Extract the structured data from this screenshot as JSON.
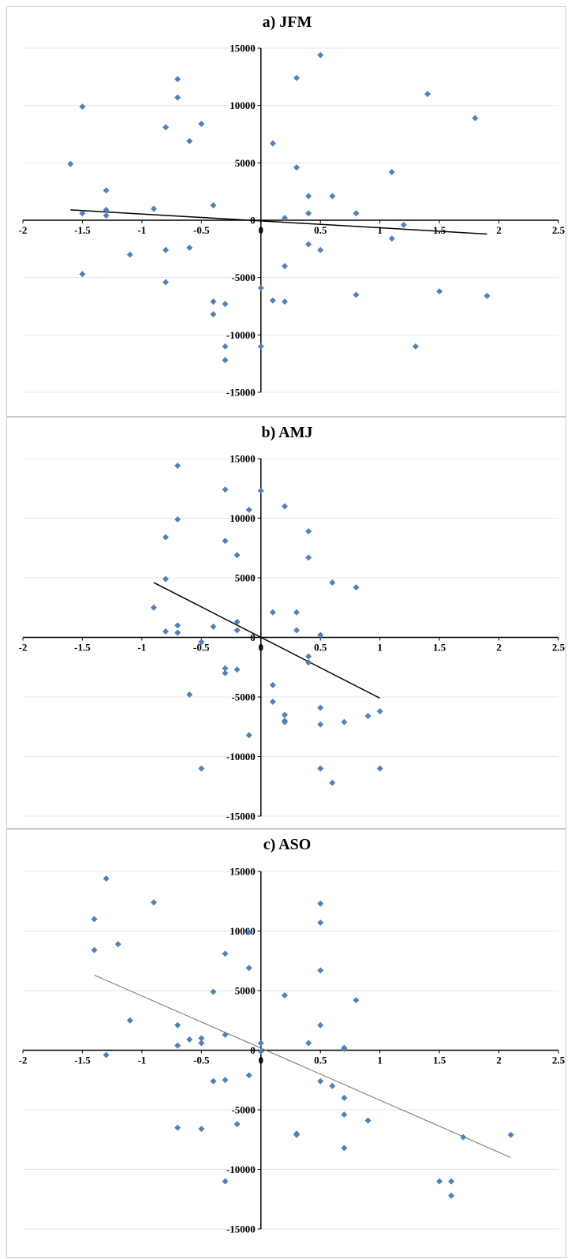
{
  "colors": {
    "point": "#4f81bd",
    "axis": "#000000",
    "grid": "#e6e6e6",
    "trend": "#000000",
    "trend_c": "#707070"
  },
  "chart_data": [
    {
      "type": "scatter",
      "title": "a) JFM",
      "xlim": [
        -2,
        2.5
      ],
      "ylim": [
        -15000,
        15000
      ],
      "xticks": [
        "-2",
        "-1.5",
        "-1",
        "-0.5",
        "0",
        "0.5",
        "1",
        "1.5",
        "2",
        "2.5"
      ],
      "yticks": [
        "15000",
        "10000",
        "5000",
        "0",
        "-5000",
        "-10000",
        "-15000"
      ],
      "grid": "horizontal",
      "points": [
        [
          -1.6,
          4900
        ],
        [
          -1.5,
          9900
        ],
        [
          -1.5,
          600
        ],
        [
          -1.5,
          -4700
        ],
        [
          -1.3,
          2600
        ],
        [
          -1.3,
          900
        ],
        [
          -1.3,
          400
        ],
        [
          -1.1,
          -3000
        ],
        [
          -0.9,
          1000
        ],
        [
          -0.8,
          8100
        ],
        [
          -0.8,
          -2600
        ],
        [
          -0.8,
          -5400
        ],
        [
          -0.7,
          12300
        ],
        [
          -0.7,
          10700
        ],
        [
          -0.6,
          6900
        ],
        [
          -0.6,
          -2400
        ],
        [
          -0.5,
          8400
        ],
        [
          -0.4,
          1300
        ],
        [
          -0.4,
          -7100
        ],
        [
          -0.4,
          -8200
        ],
        [
          -0.3,
          -7300
        ],
        [
          -0.3,
          -11000
        ],
        [
          -0.3,
          -12200
        ],
        [
          0,
          -5900
        ],
        [
          0,
          -11000
        ],
        [
          0.1,
          6700
        ],
        [
          0.1,
          -7000
        ],
        [
          0.2,
          200
        ],
        [
          0.2,
          -4000
        ],
        [
          0.2,
          -7100
        ],
        [
          0.3,
          12400
        ],
        [
          0.3,
          4600
        ],
        [
          0.4,
          2100
        ],
        [
          0.4,
          600
        ],
        [
          0.4,
          -2100
        ],
        [
          0.5,
          14400
        ],
        [
          0.5,
          -2600
        ],
        [
          0.6,
          2100
        ],
        [
          0.8,
          600
        ],
        [
          0.8,
          -6500
        ],
        [
          1.1,
          4200
        ],
        [
          1.1,
          -1600
        ],
        [
          1.2,
          -400
        ],
        [
          1.3,
          -11000
        ],
        [
          1.4,
          11000
        ],
        [
          1.5,
          -6200
        ],
        [
          1.8,
          8900
        ],
        [
          1.9,
          -6600
        ]
      ],
      "trendline": [
        [
          -1.6,
          900
        ],
        [
          1.9,
          -1200
        ]
      ]
    },
    {
      "type": "scatter",
      "title": "b) AMJ",
      "xlim": [
        -2,
        2.5
      ],
      "ylim": [
        -15000,
        15000
      ],
      "xticks": [
        "-2",
        "-1.5",
        "-1",
        "-0.5",
        "0",
        "0.5",
        "1",
        "1.5",
        "2",
        "2.5"
      ],
      "yticks": [
        "15000",
        "10000",
        "5000",
        "0",
        "-5000",
        "-10000",
        "-15000"
      ],
      "grid": "horizontal",
      "points": [
        [
          -0.9,
          2500
        ],
        [
          -0.8,
          8400
        ],
        [
          -0.8,
          4900
        ],
        [
          -0.8,
          500
        ],
        [
          -0.7,
          14400
        ],
        [
          -0.7,
          9900
        ],
        [
          -0.7,
          1000
        ],
        [
          -0.7,
          400
        ],
        [
          -0.6,
          -4800
        ],
        [
          -0.5,
          -400
        ],
        [
          -0.5,
          -11000
        ],
        [
          -0.4,
          900
        ],
        [
          -0.3,
          12400
        ],
        [
          -0.3,
          8100
        ],
        [
          -0.3,
          -2600
        ],
        [
          -0.3,
          -3000
        ],
        [
          -0.2,
          6900
        ],
        [
          -0.2,
          1300
        ],
        [
          -0.2,
          600
        ],
        [
          -0.2,
          -2700
        ],
        [
          -0.1,
          10700
        ],
        [
          -0.1,
          -8200
        ],
        [
          0,
          12300
        ],
        [
          0.1,
          2100
        ],
        [
          0.1,
          -4000
        ],
        [
          0.1,
          -5400
        ],
        [
          0.2,
          11000
        ],
        [
          0.2,
          -6500
        ],
        [
          0.2,
          -7000
        ],
        [
          0.2,
          -7100
        ],
        [
          0.3,
          2100
        ],
        [
          0.3,
          600
        ],
        [
          0.4,
          8900
        ],
        [
          0.4,
          6700
        ],
        [
          0.4,
          -1600
        ],
        [
          0.4,
          -2100
        ],
        [
          0.5,
          200
        ],
        [
          0.5,
          -5900
        ],
        [
          0.5,
          -7300
        ],
        [
          0.5,
          -11000
        ],
        [
          0.6,
          4600
        ],
        [
          0.6,
          -12200
        ],
        [
          0.7,
          -7100
        ],
        [
          0.8,
          4200
        ],
        [
          0.9,
          -6600
        ],
        [
          1,
          -6200
        ],
        [
          1,
          -11000
        ]
      ],
      "trendline": [
        [
          -0.9,
          4600
        ],
        [
          1,
          -5100
        ]
      ]
    },
    {
      "type": "scatter",
      "title": "c) ASO",
      "xlim": [
        -2,
        2.5
      ],
      "ylim": [
        -15000,
        15000
      ],
      "xticks": [
        "-2",
        "-1.5",
        "-1",
        "-0.5",
        "0",
        "0.5",
        "1",
        "1.5",
        "2",
        "2.5"
      ],
      "yticks": [
        "15000",
        "10000",
        "5000",
        "0",
        "-5000",
        "-10000",
        "-15000"
      ],
      "grid": "horizontal",
      "points": [
        [
          -1.4,
          11000
        ],
        [
          -1.4,
          8400
        ],
        [
          -1.3,
          14400
        ],
        [
          -1.3,
          -400
        ],
        [
          -1.2,
          8900
        ],
        [
          -1.1,
          2500
        ],
        [
          -0.9,
          12400
        ],
        [
          -0.7,
          2100
        ],
        [
          -0.7,
          400
        ],
        [
          -0.7,
          -6500
        ],
        [
          -0.6,
          900
        ],
        [
          -0.5,
          1000
        ],
        [
          -0.5,
          600
        ],
        [
          -0.5,
          -6600
        ],
        [
          -0.4,
          4900
        ],
        [
          -0.4,
          -2600
        ],
        [
          -0.3,
          8100
        ],
        [
          -0.3,
          1300
        ],
        [
          -0.3,
          -2500
        ],
        [
          -0.3,
          -11000
        ],
        [
          -0.2,
          -6200
        ],
        [
          -0.1,
          9900
        ],
        [
          -0.1,
          6900
        ],
        [
          -0.1,
          -2100
        ],
        [
          0,
          600
        ],
        [
          0,
          -100
        ],
        [
          0.2,
          4600
        ],
        [
          0.3,
          -7000
        ],
        [
          0.3,
          -7100
        ],
        [
          0.4,
          600
        ],
        [
          0.5,
          12300
        ],
        [
          0.5,
          10700
        ],
        [
          0.5,
          6700
        ],
        [
          0.5,
          2100
        ],
        [
          0.5,
          -2600
        ],
        [
          0.6,
          -3000
        ],
        [
          0.7,
          200
        ],
        [
          0.7,
          100
        ],
        [
          0.7,
          -4000
        ],
        [
          0.7,
          -5400
        ],
        [
          0.7,
          -8200
        ],
        [
          0.8,
          4200
        ],
        [
          0.9,
          -5900
        ],
        [
          1.5,
          -11000
        ],
        [
          1.6,
          -11000
        ],
        [
          1.6,
          -12200
        ],
        [
          1.7,
          -7300
        ],
        [
          2.1,
          -7100
        ]
      ],
      "trendline": [
        [
          -1.4,
          6300
        ],
        [
          2.1,
          -9000
        ]
      ]
    }
  ]
}
